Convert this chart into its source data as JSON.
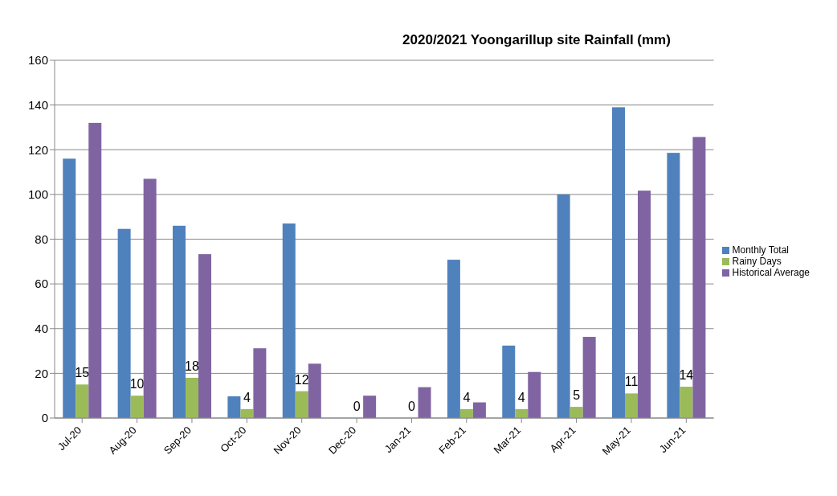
{
  "chart_data": {
    "type": "bar",
    "title": "2020/2021 Yoongarillup site Rainfall (mm)",
    "categories": [
      "Jul-20",
      "Aug-20",
      "Sep-20",
      "Oct-20",
      "Nov-20",
      "Dec-20",
      "Jan-21",
      "Feb-21",
      "Mar-21",
      "Apr-21",
      "May-21",
      "Jun-21"
    ],
    "series": [
      {
        "name": "Monthly Total",
        "color": "#4f81bd",
        "values": [
          116,
          84.6,
          86,
          9.7,
          87,
          0,
          0,
          70.8,
          32.4,
          100,
          139,
          118.6
        ]
      },
      {
        "name": "Rainy Days",
        "color": "#9bbb59",
        "values": [
          15,
          10,
          18,
          4,
          12,
          0,
          0,
          4,
          4,
          5,
          11,
          14
        ],
        "value_labels": [
          "15",
          "10",
          "18",
          "4",
          "12",
          "0",
          "0",
          "4",
          "4",
          "5",
          "11",
          "14"
        ]
      },
      {
        "name": "Historical Average",
        "color": "#8064a2",
        "values": [
          132,
          107,
          73.3,
          31.2,
          24.3,
          10,
          13.8,
          7,
          20.6,
          36.3,
          101.7,
          125.7
        ]
      }
    ],
    "ylim": [
      0,
      160
    ],
    "yticks": [
      0,
      20,
      40,
      60,
      80,
      100,
      120,
      140,
      160
    ],
    "grid": "y",
    "legend": "right"
  }
}
